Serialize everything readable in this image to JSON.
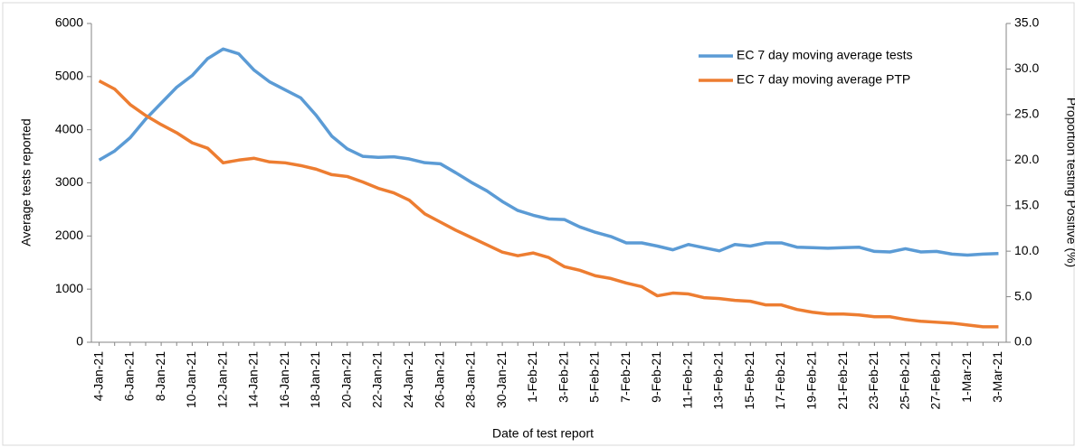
{
  "chart_data": {
    "type": "line",
    "xlabel": "Date of test report",
    "ylabel": "Average tests reported",
    "y2label": "Proportion testing Positive (%)",
    "categories": [
      "4-Jan-21",
      null,
      "6-Jan-21",
      null,
      "8-Jan-21",
      null,
      "10-Jan-21",
      null,
      "12-Jan-21",
      null,
      "14-Jan-21",
      null,
      "16-Jan-21",
      null,
      "18-Jan-21",
      null,
      "20-Jan-21",
      null,
      "22-Jan-21",
      null,
      "24-Jan-21",
      null,
      "26-Jan-21",
      null,
      "28-Jan-21",
      null,
      "30-Jan-21",
      null,
      "1-Feb-21",
      null,
      "3-Feb-21",
      null,
      "5-Feb-21",
      null,
      "7-Feb-21",
      null,
      "9-Feb-21",
      null,
      "11-Feb-21",
      null,
      "13-Feb-21",
      null,
      "15-Feb-21",
      null,
      "17-Feb-21",
      null,
      "19-Feb-21",
      null,
      "21-Feb-21",
      null,
      "23-Feb-21",
      null,
      "25-Feb-21",
      null,
      "27-Feb-21",
      null,
      "1-Mar-21",
      null,
      "3-Mar-21"
    ],
    "series": [
      {
        "name": "EC 7 day moving average tests",
        "color": "#5b9bd5",
        "axis": "y",
        "values": [
          3430,
          3600,
          3850,
          4200,
          4500,
          4800,
          5020,
          5340,
          5520,
          5430,
          5120,
          4900,
          4750,
          4600,
          4270,
          3880,
          3640,
          3500,
          3480,
          3490,
          3450,
          3380,
          3360,
          3190,
          3010,
          2850,
          2650,
          2480,
          2390,
          2320,
          2310,
          2170,
          2070,
          1990,
          1870,
          1870,
          1810,
          1740,
          1840,
          1780,
          1720,
          1840,
          1810,
          1870,
          1870,
          1790,
          1780,
          1770,
          1780,
          1790,
          1710,
          1700,
          1760,
          1700,
          1710,
          1660,
          1640,
          1660,
          1670
        ]
      },
      {
        "name": "EC 7 day moving average PTP",
        "color": "#ed7d31",
        "axis": "y2",
        "values": [
          28.7,
          27.8,
          26.1,
          24.9,
          23.9,
          23.0,
          21.9,
          21.3,
          19.7,
          20.0,
          20.2,
          19.8,
          19.7,
          19.4,
          19.0,
          18.4,
          18.2,
          17.6,
          16.9,
          16.4,
          15.6,
          14.1,
          13.2,
          12.3,
          11.5,
          10.7,
          9.9,
          9.5,
          9.8,
          9.3,
          8.3,
          7.9,
          7.3,
          7.0,
          6.5,
          6.1,
          5.1,
          5.4,
          5.3,
          4.9,
          4.8,
          4.6,
          4.5,
          4.1,
          4.1,
          3.6,
          3.3,
          3.1,
          3.1,
          3.0,
          2.8,
          2.8,
          2.5,
          2.3,
          2.2,
          2.1,
          1.9,
          1.7,
          1.7
        ]
      }
    ],
    "ylim": [
      0,
      6000
    ],
    "yticks": [
      0,
      1000,
      2000,
      3000,
      4000,
      5000,
      6000
    ],
    "y2lim": [
      0,
      35
    ],
    "y2ticks": [
      {
        "value": 0,
        "label": "0.0"
      },
      {
        "value": 5,
        "label": "5.0"
      },
      {
        "value": 10,
        "label": "10.0"
      },
      {
        "value": 15,
        "label": "15.0"
      },
      {
        "value": 20,
        "label": "20.0"
      },
      {
        "value": 25,
        "label": "25.0"
      },
      {
        "value": 30,
        "label": "30.0"
      },
      {
        "value": 35,
        "label": "35.0"
      }
    ],
    "legend": "upper right",
    "grid": false
  }
}
